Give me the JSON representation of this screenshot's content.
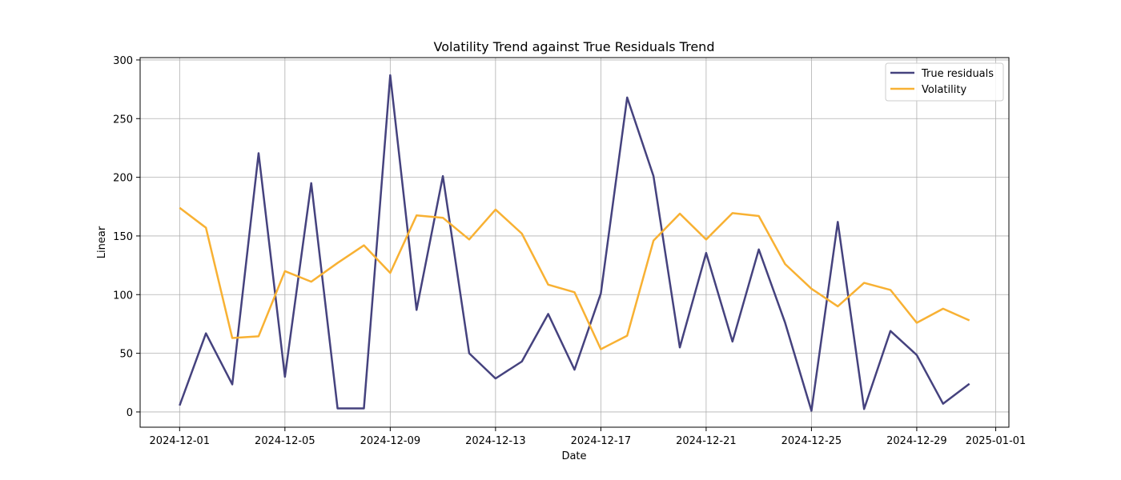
{
  "chart_data": {
    "type": "line",
    "title": "Volatility Trend against True Residuals Trend",
    "xlabel": "Date",
    "ylabel": "Linear",
    "x": [
      "2024-12-01",
      "2024-12-02",
      "2024-12-03",
      "2024-12-04",
      "2024-12-05",
      "2024-12-06",
      "2024-12-07",
      "2024-12-08",
      "2024-12-09",
      "2024-12-10",
      "2024-12-11",
      "2024-12-12",
      "2024-12-13",
      "2024-12-14",
      "2024-12-15",
      "2024-12-16",
      "2024-12-17",
      "2024-12-18",
      "2024-12-19",
      "2024-12-20",
      "2024-12-21",
      "2024-12-22",
      "2024-12-23",
      "2024-12-24",
      "2024-12-25",
      "2024-12-26",
      "2024-12-27",
      "2024-12-28",
      "2024-12-29",
      "2024-12-30",
      "2024-12-31"
    ],
    "series": [
      {
        "name": "True residuals",
        "color": "#45427e",
        "values": [
          5.5,
          67,
          23.5,
          220.5,
          30,
          195,
          3,
          3,
          287,
          87,
          201,
          50,
          28.5,
          43,
          83.5,
          36,
          101,
          268,
          201,
          55,
          135.5,
          60,
          138.5,
          76,
          1,
          162,
          2.5,
          69,
          48.5,
          7,
          24
        ]
      },
      {
        "name": "Volatility",
        "color": "#f8b133",
        "values": [
          174,
          157,
          63,
          64.5,
          120,
          111,
          127,
          142,
          118.5,
          167.5,
          165.5,
          147,
          172.5,
          152,
          108.5,
          102,
          53.5,
          65,
          146,
          169,
          147,
          169.5,
          167,
          126,
          105,
          90,
          110,
          104,
          76,
          88,
          78
        ]
      }
    ],
    "xticks": [
      "2024-12-01",
      "2024-12-05",
      "2024-12-09",
      "2024-12-13",
      "2024-12-17",
      "2024-12-21",
      "2024-12-25",
      "2024-12-29",
      "2025-01-01"
    ],
    "yticks": [
      0,
      50,
      100,
      150,
      200,
      250,
      300
    ],
    "xlim": [
      "2024-11-29T12:00",
      "2025-01-01T12:00"
    ],
    "ylim": [
      -13,
      302
    ],
    "grid": true,
    "legend_position": "top-right"
  }
}
